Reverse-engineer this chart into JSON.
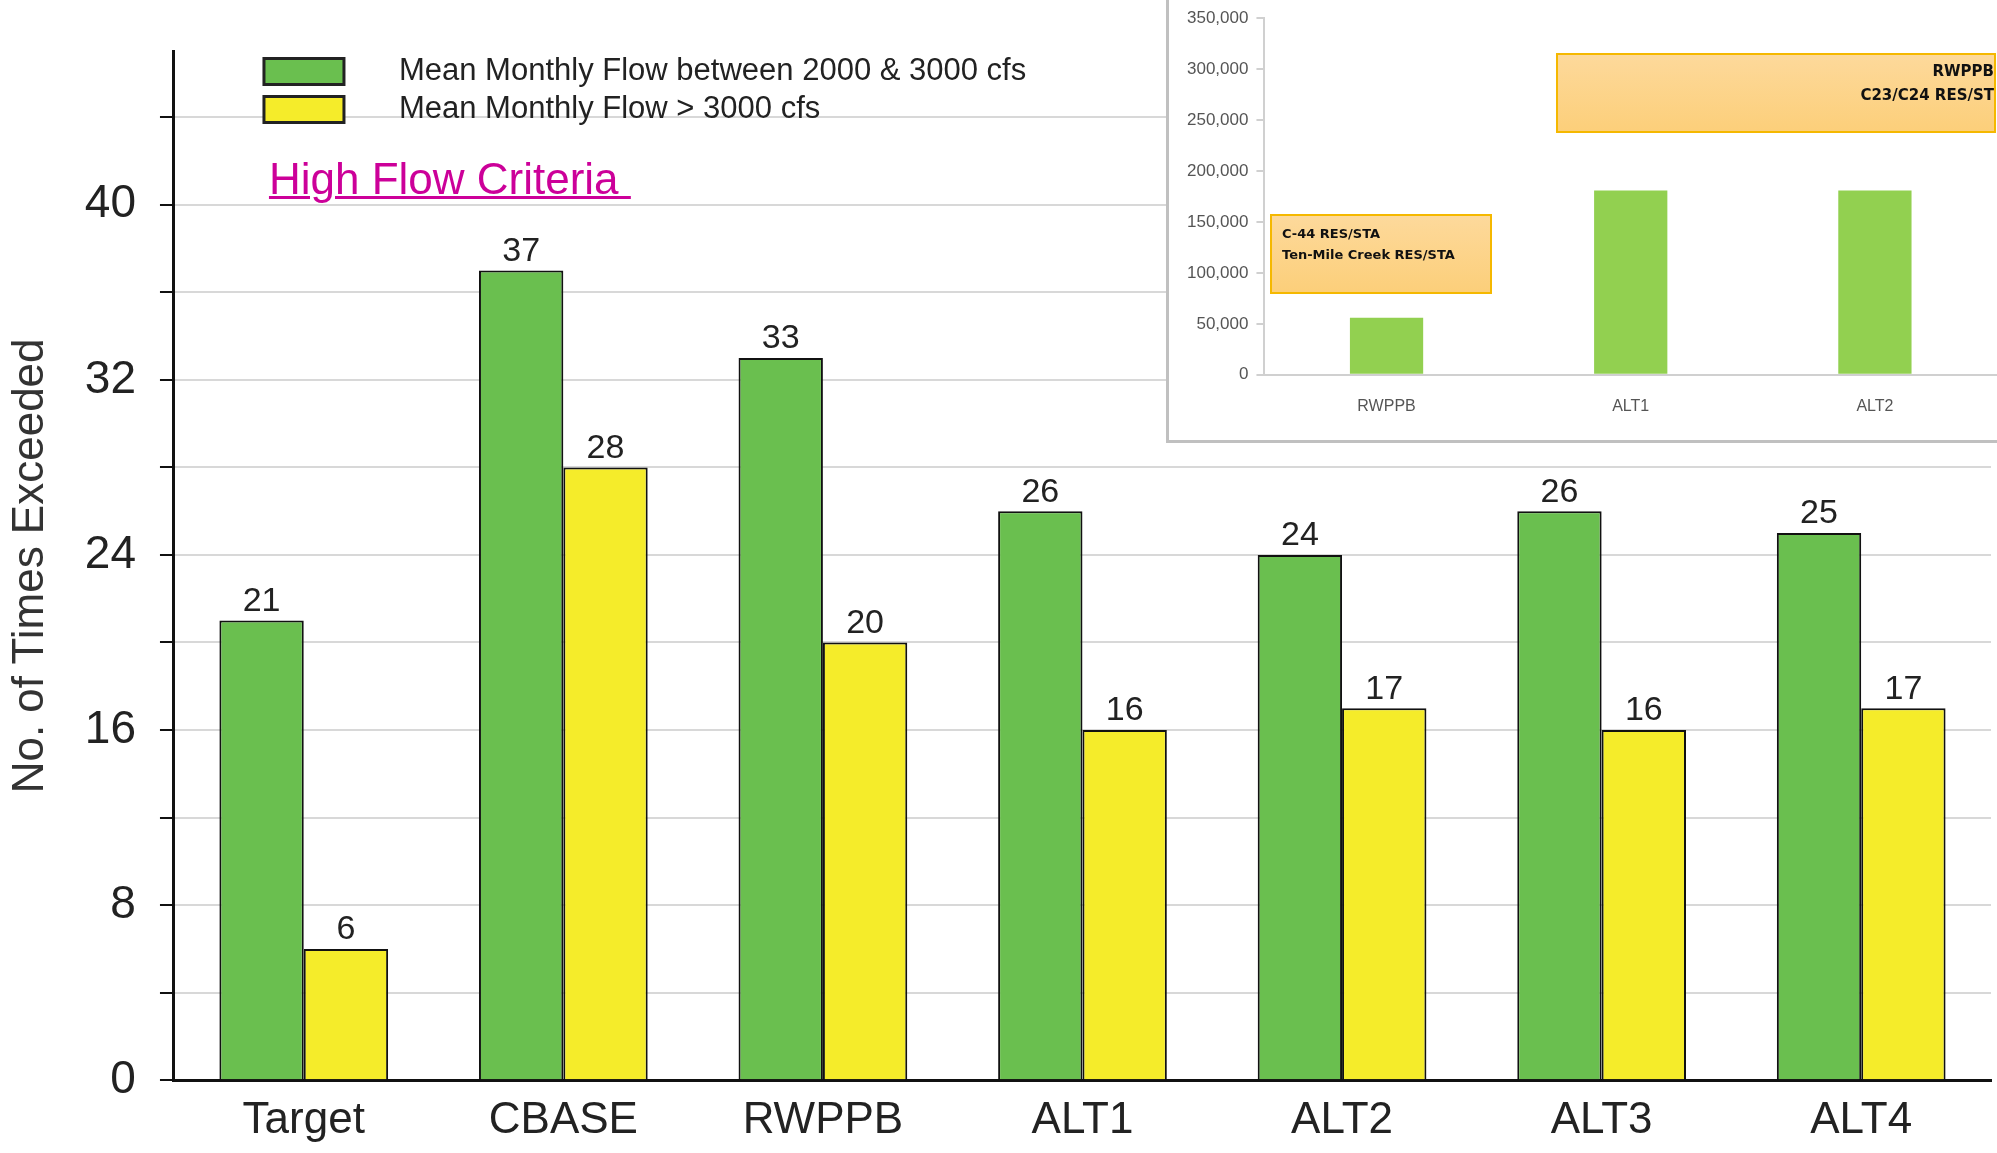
{
  "chart_data": [
    {
      "type": "bar",
      "title": "High Flow Criteria",
      "ylabel": "No. of Times Exceeded",
      "categories": [
        "Target",
        "CBASE",
        "RWPPB",
        "ALT1",
        "ALT2",
        "ALT3",
        "ALT4"
      ],
      "series": [
        {
          "name": "Mean Monthly Flow between 2000 & 3000 cfs",
          "color": "#6abf4f",
          "values": [
            21,
            37,
            33,
            26,
            24,
            26,
            25
          ]
        },
        {
          "name": "Mean Monthly Flow > 3000 cfs",
          "color": "#f5ec2a",
          "values": [
            6,
            28,
            20,
            16,
            17,
            16,
            17
          ]
        }
      ],
      "ylim": [
        0,
        47
      ],
      "yticks": [
        0,
        {
          "value": 4,
          "label": null
        },
        8,
        {
          "value": 12,
          "label": null
        },
        16,
        {
          "value": 20,
          "label": null
        },
        24,
        {
          "value": 28,
          "label": null
        },
        32,
        {
          "value": 36,
          "label": null
        },
        40,
        {
          "value": 44,
          "label": null
        }
      ],
      "grid": "y",
      "legend": "top left",
      "data_labels": true
    },
    {
      "type": "bar",
      "categories": [
        "RWPPB",
        "ALT1",
        "ALT2"
      ],
      "values": [
        56000,
        181000,
        181000
      ],
      "color": "#92d050",
      "ylim": [
        0,
        350000
      ],
      "yticks": [
        0,
        {
          "value": 50000,
          "label": "50,000"
        },
        {
          "value": 100000,
          "label": "100,000"
        },
        {
          "value": 150000,
          "label": "150,000"
        },
        {
          "value": 200000,
          "label": "200,000"
        },
        {
          "value": 250000,
          "label": "250,000"
        },
        {
          "value": 300000,
          "label": "300,000"
        },
        {
          "value": 350000,
          "label": "350,000"
        }
      ],
      "annotations": [
        "C-44 RES/STA\nTen-Mile Creek RES/STA",
        "RWPPB\nC23/C24 RES/ST"
      ]
    }
  ]
}
